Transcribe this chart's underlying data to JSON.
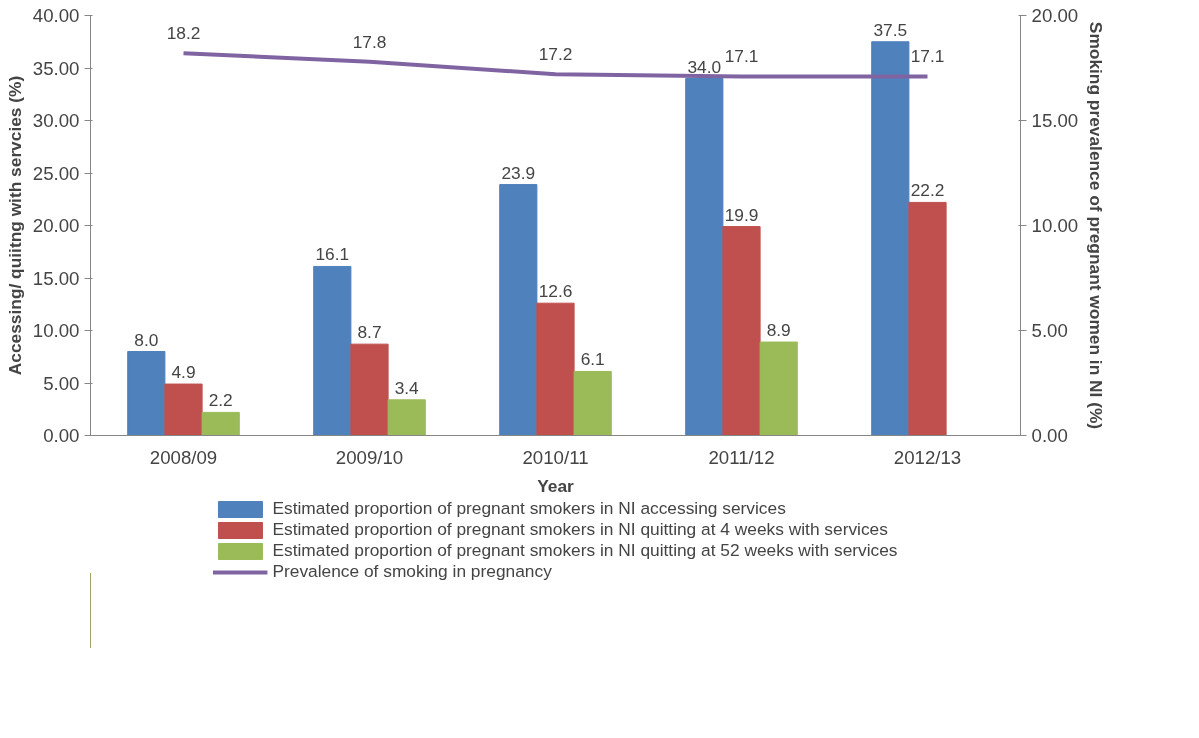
{
  "chart_data": {
    "type": "bar",
    "xlabel": "Year",
    "ylabel": "Accessing/ quiitng with servcies (%)",
    "y2label": "Smoking prevalence of pregnant women in NI (%)",
    "categories": [
      "2008/09",
      "2009/10",
      "2010/11",
      "2011/12",
      "2012/13"
    ],
    "series": [
      {
        "name": "Estimated proportion of pregnant smokers in NI accessing services",
        "color": "#4f81bd",
        "values": [
          8.0,
          16.1,
          23.9,
          34.0,
          37.5
        ],
        "value_labels": [
          "8.0",
          "16.1",
          "23.9",
          "34.0",
          "37.5"
        ]
      },
      {
        "name": "Estimated proportion of pregnant smokers in NI quitting at 4 weeks with services",
        "color": "#c0504d",
        "values": [
          4.9,
          8.7,
          12.6,
          19.9,
          22.2
        ],
        "value_labels": [
          "4.9",
          "8.7",
          "12.6",
          "19.9",
          "22.2"
        ]
      },
      {
        "name": "Estimated proportion of pregnant smokers in NI quitting at 52 weeks with services",
        "color": "#9bbb59",
        "values": [
          2.2,
          3.4,
          6.1,
          8.9,
          null
        ],
        "value_labels": [
          "2.2",
          "3.4",
          "6.1",
          "8.9",
          null
        ]
      },
      {
        "name": "Prevalence of smoking in pregnancy",
        "type": "line",
        "axis": "y2",
        "color": "#8064a2",
        "values": [
          18.2,
          17.8,
          17.2,
          17.1,
          17.1
        ],
        "value_labels": [
          "18.2",
          "17.8",
          "17.2",
          "17.1",
          "17.1"
        ]
      }
    ],
    "ylim": [
      0,
      40
    ],
    "yticks": [
      {
        "value": 0,
        "label": "0.00"
      },
      {
        "value": 5,
        "label": "5.00"
      },
      {
        "value": 10,
        "label": "10.00"
      },
      {
        "value": 15,
        "label": "15.00"
      },
      {
        "value": 20,
        "label": "20.00"
      },
      {
        "value": 25,
        "label": "25.00"
      },
      {
        "value": 30,
        "label": "30.00"
      },
      {
        "value": 35,
        "label": "35.00"
      },
      {
        "value": 40,
        "label": "40.00"
      }
    ],
    "y2lim": [
      0,
      20
    ],
    "y2ticks": [
      {
        "value": 0,
        "label": "0.00"
      },
      {
        "value": 5,
        "label": "5.00"
      },
      {
        "value": 10,
        "label": "10.00"
      },
      {
        "value": 15,
        "label": "15.00"
      },
      {
        "value": 20,
        "label": "20.00"
      }
    ],
    "legend": "bottom",
    "grid": false,
    "marker": "none",
    "line_style": "solid"
  }
}
